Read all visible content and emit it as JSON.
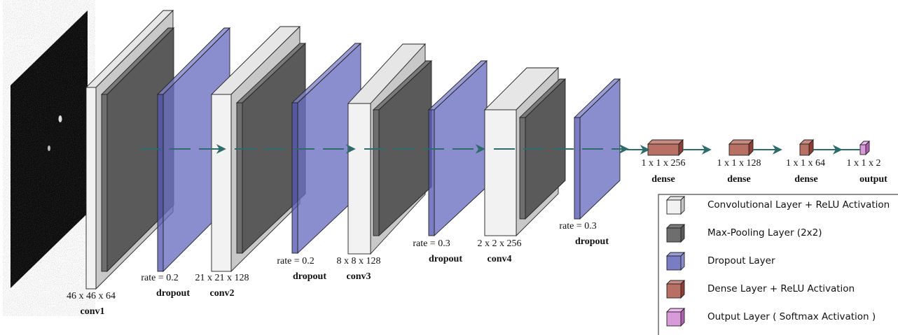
{
  "layers": [
    {
      "label": "46 x 46 x 64",
      "name": "conv1"
    },
    {
      "label": "rate = 0.2",
      "name": "dropout"
    },
    {
      "label": "21 x 21 x 128",
      "name": "conv2"
    },
    {
      "label": "rate = 0.2",
      "name": "dropout"
    },
    {
      "label": "8 x 8 x 128",
      "name": "conv3"
    },
    {
      "label": "rate = 0.3",
      "name": "dropout"
    },
    {
      "label": "2 x 2 x 256",
      "name": "conv4"
    },
    {
      "label": "rate = 0.3",
      "name": "dropout"
    },
    {
      "label": "1 x 1 x 256",
      "name": "dense"
    },
    {
      "label": "1 x 1 x 128",
      "name": "dense"
    },
    {
      "label": "1 x 1 x 64",
      "name": "dense"
    },
    {
      "label": "1 x 1 x 2",
      "name": "output"
    }
  ],
  "legend": [
    "Convolutional Layer + ReLU Activation",
    "Max-Pooling Layer (2x2)",
    "Dropout Layer",
    "Dense Layer + ReLU Activation",
    "Output Layer ( Softmax Activation )"
  ]
}
